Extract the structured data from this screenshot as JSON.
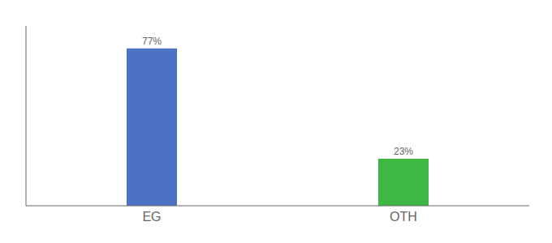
{
  "chart_data": {
    "type": "bar",
    "categories": [
      "EG",
      "OTH"
    ],
    "values": [
      77,
      23
    ],
    "value_labels": [
      "77%",
      "23%"
    ],
    "colors": [
      "#4c72c4",
      "#3cb843"
    ],
    "ylim": [
      0,
      88
    ],
    "data_labels": true,
    "tick_labels": "x",
    "grid": false
  }
}
